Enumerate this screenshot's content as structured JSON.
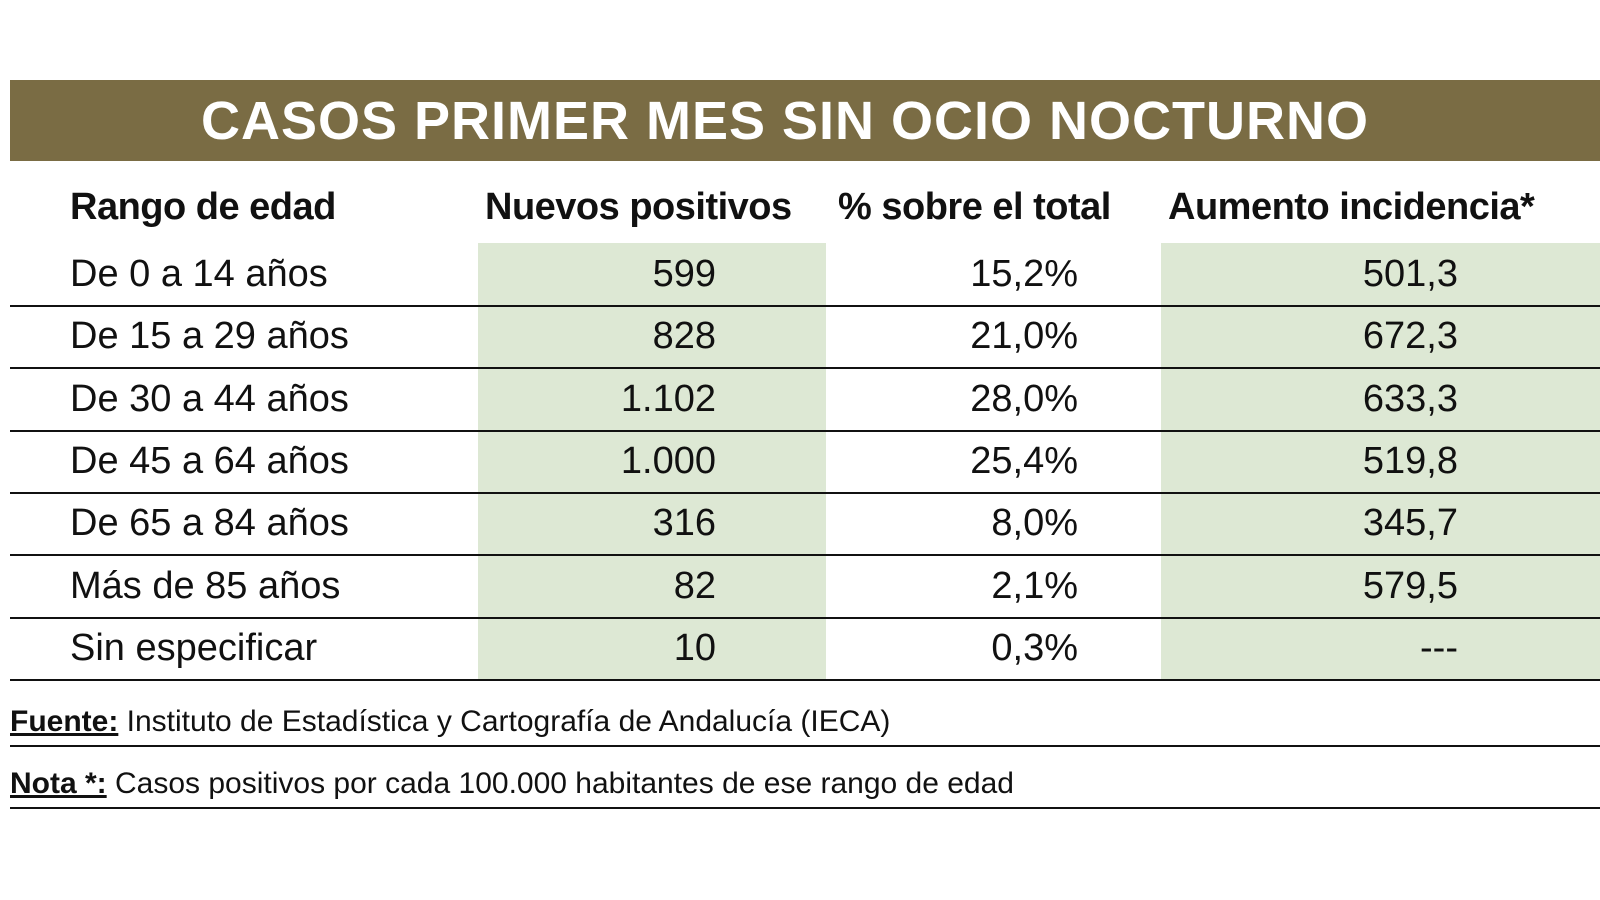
{
  "title": "CASOS PRIMER MES SIN OCIO NOCTURNO",
  "columns": [
    "Rango de edad",
    "Nuevos positivos",
    "% sobre el total",
    "Aumento incidencia*"
  ],
  "rows": [
    [
      "De 0 a 14 años",
      "599",
      "15,2%",
      "501,3"
    ],
    [
      "De 15 a 29 años",
      "828",
      "21,0%",
      "672,3"
    ],
    [
      "De 30 a 44 años",
      "1.102",
      "28,0%",
      "633,3"
    ],
    [
      "De 45 a 64 años",
      "1.000",
      "25,4%",
      "519,8"
    ],
    [
      "De 65 a 84 años",
      "316",
      "8,0%",
      "345,7"
    ],
    [
      "Más de 85 años",
      "82",
      "2,1%",
      "579,5"
    ],
    [
      "Sin especificar",
      "10",
      "0,3%",
      "---"
    ]
  ],
  "footer": {
    "source_label": "Fuente:",
    "source_text": " Instituto de Estadística y Cartografía de Andalucía (IECA)",
    "note_label": "Nota *:",
    "note_text": " Casos positivos por cada 100.000 habitantes de ese rango de edad"
  },
  "colors": {
    "title_bar": "#7a6c44",
    "highlight_column": "#dde8d4"
  }
}
